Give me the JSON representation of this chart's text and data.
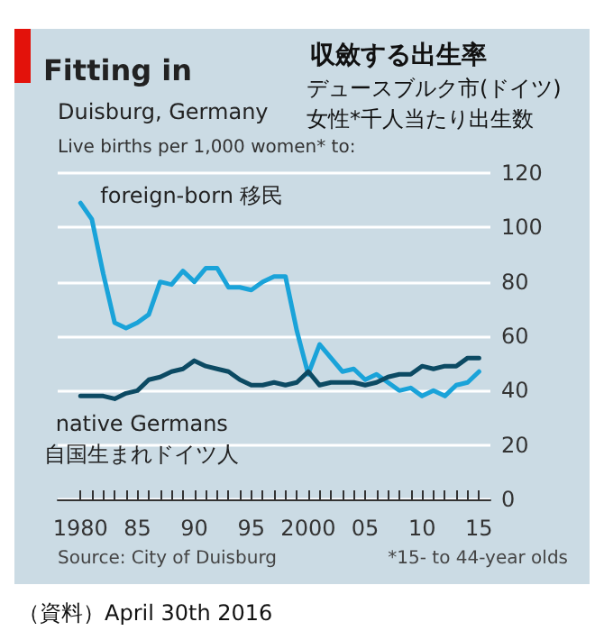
{
  "chart_data": {
    "type": "line",
    "title": "Fitting in",
    "subtitle": "Duisburg, Germany",
    "ylabel": "Live births per 1,000 women* to:",
    "annotations": [
      "収斂する出生率",
      "デュースブルク市(ドイツ)",
      "女性*千人当たり出生数",
      "Source: City of Duisburg",
      "*15- to 44-year olds",
      "（資料）April 30th 2016"
    ],
    "x": [
      1980,
      1981,
      1982,
      1983,
      1984,
      1985,
      1986,
      1987,
      1988,
      1989,
      1990,
      1991,
      1992,
      1993,
      1994,
      1995,
      1996,
      1997,
      1998,
      1999,
      2000,
      2001,
      2002,
      2003,
      2004,
      2005,
      2006,
      2007,
      2008,
      2009,
      2010,
      2011,
      2012,
      2013,
      2014,
      2015
    ],
    "series": [
      {
        "name": "foreign-born 移民",
        "color": "#1aa3d9",
        "values": [
          109,
          103,
          83,
          65,
          63,
          65,
          68,
          80,
          79,
          84,
          80,
          85,
          85,
          78,
          78,
          77,
          80,
          82,
          82,
          62,
          46,
          57,
          52,
          47,
          48,
          44,
          46,
          43,
          40,
          41,
          38,
          40,
          38,
          42,
          43,
          47
        ]
      },
      {
        "name": "native Germans\n自国生まれドイツ人",
        "color": "#0c4a63",
        "values": [
          38,
          38,
          38,
          37,
          39,
          40,
          44,
          45,
          47,
          48,
          51,
          49,
          48,
          47,
          44,
          42,
          42,
          43,
          42,
          43,
          47,
          42,
          43,
          43,
          43,
          42,
          43,
          45,
          46,
          46,
          49,
          48,
          49,
          49,
          52,
          52
        ]
      }
    ],
    "xlim": [
      1978,
      2016
    ],
    "xticks": [
      {
        "value": 1980,
        "label": "1980"
      },
      {
        "value": 1981,
        "label": null
      },
      {
        "value": 1982,
        "label": null
      },
      {
        "value": 1983,
        "label": null
      },
      {
        "value": 1984,
        "label": null
      },
      {
        "value": 1985,
        "label": "85"
      },
      {
        "value": 1986,
        "label": null
      },
      {
        "value": 1987,
        "label": null
      },
      {
        "value": 1988,
        "label": null
      },
      {
        "value": 1989,
        "label": null
      },
      {
        "value": 1990,
        "label": "90"
      },
      {
        "value": 1991,
        "label": null
      },
      {
        "value": 1992,
        "label": null
      },
      {
        "value": 1993,
        "label": null
      },
      {
        "value": 1994,
        "label": null
      },
      {
        "value": 1995,
        "label": "95"
      },
      {
        "value": 1996,
        "label": null
      },
      {
        "value": 1997,
        "label": null
      },
      {
        "value": 1998,
        "label": null
      },
      {
        "value": 1999,
        "label": null
      },
      {
        "value": 2000,
        "label": "2000"
      },
      {
        "value": 2001,
        "label": null
      },
      {
        "value": 2002,
        "label": null
      },
      {
        "value": 2003,
        "label": null
      },
      {
        "value": 2004,
        "label": null
      },
      {
        "value": 2005,
        "label": "05"
      },
      {
        "value": 2006,
        "label": null
      },
      {
        "value": 2007,
        "label": null
      },
      {
        "value": 2008,
        "label": null
      },
      {
        "value": 2009,
        "label": null
      },
      {
        "value": 2010,
        "label": "10"
      },
      {
        "value": 2011,
        "label": null
      },
      {
        "value": 2012,
        "label": null
      },
      {
        "value": 2013,
        "label": null
      },
      {
        "value": 2014,
        "label": null
      },
      {
        "value": 2015,
        "label": "15"
      }
    ],
    "ylim": [
      0,
      120
    ],
    "yticks": [
      0,
      20,
      40,
      60,
      80,
      100,
      120
    ],
    "grid": "y",
    "legend": false,
    "marker": "none",
    "line_style": "solid"
  }
}
